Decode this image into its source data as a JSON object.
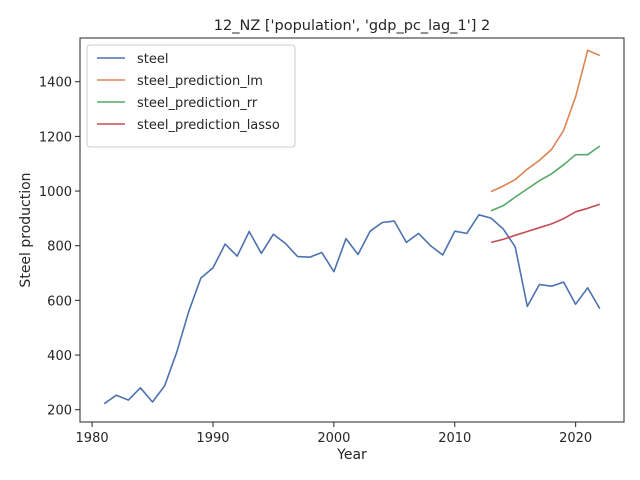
{
  "chart_data": {
    "type": "line",
    "title": "12_NZ ['population', 'gdp_pc_lag_1'] 2",
    "xlabel": "Year",
    "ylabel": "Steel production",
    "xlim": [
      1979,
      2024
    ],
    "ylim": [
      155,
      1560
    ],
    "xticks": [
      1980,
      1990,
      2000,
      2010,
      2020
    ],
    "yticks": [
      200,
      400,
      600,
      800,
      1000,
      1200,
      1400
    ],
    "grid": false,
    "legend_position": "top-left",
    "series": [
      {
        "name": "steel",
        "color": "#4c72b0",
        "x": [
          1981,
          1982,
          1983,
          1984,
          1985,
          1986,
          1987,
          1988,
          1989,
          1990,
          1991,
          1992,
          1993,
          1994,
          1995,
          1996,
          1997,
          1998,
          1999,
          2000,
          2001,
          2002,
          2003,
          2004,
          2005,
          2006,
          2007,
          2008,
          2009,
          2010,
          2011,
          2012,
          2013,
          2014,
          2015,
          2016,
          2017,
          2018,
          2019,
          2020,
          2021,
          2022
        ],
        "y": [
          222,
          253,
          235,
          280,
          228,
          287,
          410,
          560,
          682,
          719,
          806,
          762,
          852,
          772,
          842,
          808,
          760,
          758,
          775,
          705,
          826,
          768,
          853,
          885,
          890,
          812,
          845,
          800,
          766,
          853,
          845,
          913,
          901,
          862,
          796,
          578,
          658,
          652,
          667,
          586,
          646,
          570
        ]
      },
      {
        "name": "steel_prediction_lm",
        "color": "#dd8452",
        "x": [
          2013,
          2014,
          2015,
          2016,
          2017,
          2018,
          2019,
          2020,
          2021,
          2022
        ],
        "y": [
          998,
          1018,
          1042,
          1080,
          1112,
          1152,
          1222,
          1345,
          1515,
          1496
        ]
      },
      {
        "name": "steel_prediction_rr",
        "color": "#55a868",
        "x": [
          2013,
          2014,
          2015,
          2016,
          2017,
          2018,
          2019,
          2020,
          2021,
          2022
        ],
        "y": [
          928,
          946,
          978,
          1008,
          1038,
          1063,
          1096,
          1133,
          1133,
          1165
        ]
      },
      {
        "name": "steel_prediction_lasso",
        "color": "#c44e52",
        "x": [
          2013,
          2014,
          2015,
          2016,
          2017,
          2018,
          2019,
          2020,
          2021,
          2022
        ],
        "y": [
          812,
          823,
          838,
          852,
          866,
          880,
          899,
          924,
          937,
          952
        ]
      }
    ]
  }
}
